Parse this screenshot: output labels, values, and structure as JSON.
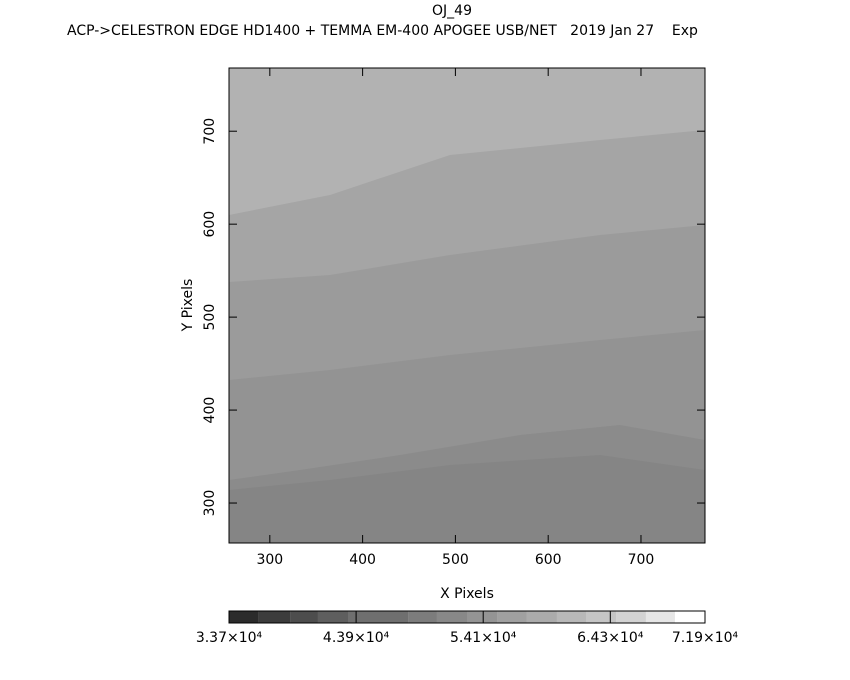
{
  "chart_data": {
    "type": "image",
    "title": "OJ_49",
    "subtitle": "ACP->CELESTRON EDGE HD1400 + TEMMA EM-400 APOGEE USB/NET   2019 Jan 27    Exp",
    "xlabel": "X Pixels",
    "ylabel": "Y Pixels",
    "xlim": [
      256,
      769
    ],
    "ylim": [
      257,
      768
    ],
    "xticks": [
      300,
      400,
      500,
      600,
      700
    ],
    "yticks": [
      300,
      400,
      500,
      600,
      700
    ],
    "colorbar": {
      "bounds": [
        33700,
        36030,
        38600,
        40840,
        43250,
        48070,
        50390,
        52800,
        55210,
        57610,
        60020,
        62350,
        64760,
        67160,
        69490,
        71900
      ],
      "colors": [
        "#2b2b2b",
        "#3c3c3c",
        "#4d4d4d",
        "#5e5e5e",
        "#6f6f6f",
        "#7c7c7c",
        "#888888",
        "#949494",
        "#a0a0a0",
        "#ababab",
        "#b8b8b8",
        "#c5c5c5",
        "#d3d3d3",
        "#e6e6e6",
        "#ffffff"
      ],
      "ticks": [
        {
          "value": 33700,
          "label": "3.37×10⁴"
        },
        {
          "value": 43900,
          "label": "4.39×10⁴"
        },
        {
          "value": 54100,
          "label": "5.41×10⁴"
        },
        {
          "value": 64300,
          "label": "6.43×10⁴"
        },
        {
          "value": 71900,
          "label": "7.19×10⁴"
        }
      ]
    }
  }
}
